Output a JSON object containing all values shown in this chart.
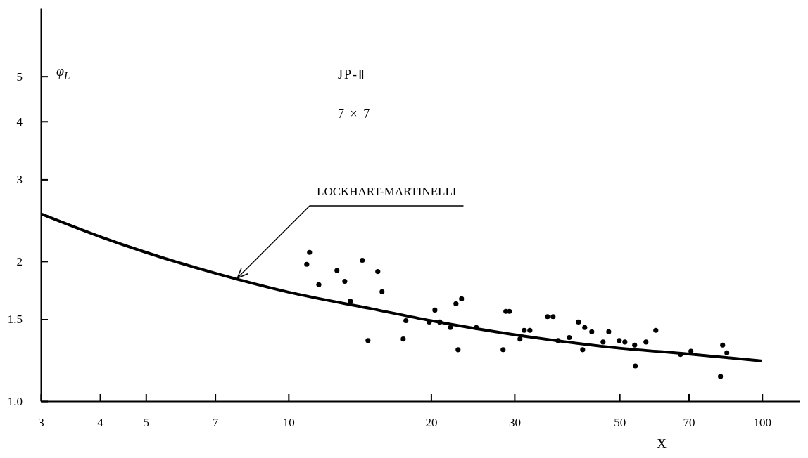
{
  "chart_data": {
    "type": "scatter",
    "ylabel": "φ$_{L}$",
    "xlabel": "X",
    "log": "xy",
    "grid": false,
    "xlim": [
      3,
      120
    ],
    "ylim": [
      1,
      7
    ],
    "xticks": [
      3,
      4,
      5,
      7,
      10,
      20,
      30,
      50,
      70,
      100
    ],
    "yticks": [
      {
        "value": 1,
        "label": "1.0"
      },
      1.5,
      2,
      3,
      4,
      5
    ],
    "annotations": [
      "JP-Ⅱ",
      "7 × 7",
      {
        "text": "LOCKHART-MARTINELLI",
        "x": 7.8,
        "y": 1.84
      }
    ],
    "series": [
      {
        "marker": "circle",
        "color": "#000000",
        "x": [
          10.93,
          11.08,
          11.59,
          12.66,
          13.15,
          13.51,
          14.32,
          15.44,
          15.76,
          14.72,
          17.47,
          17.7,
          20.38,
          19.83,
          20.87,
          21.97,
          22.58,
          23.2,
          22.81,
          24.93,
          28.78,
          29.28,
          28.39,
          31.46,
          32.34,
          30.82,
          35.24,
          36.2,
          37.08,
          39.16,
          40.96,
          42.23,
          43.7,
          41.8,
          46.16,
          47.45,
          49.94,
          51.33,
          53.83,
          54.02,
          56.87,
          59.66,
          67.26,
          70.77,
          82.56,
          84.27,
          81.7
        ],
        "values": [
          1.97,
          2.09,
          1.78,
          1.91,
          1.81,
          1.64,
          2.01,
          1.9,
          1.72,
          1.35,
          1.36,
          1.49,
          1.57,
          1.48,
          1.48,
          1.44,
          1.62,
          1.66,
          1.29,
          1.44,
          1.56,
          1.56,
          1.29,
          1.42,
          1.42,
          1.36,
          1.52,
          1.52,
          1.35,
          1.37,
          1.48,
          1.44,
          1.41,
          1.29,
          1.34,
          1.41,
          1.35,
          1.34,
          1.32,
          1.19,
          1.34,
          1.42,
          1.26,
          1.28,
          1.32,
          1.27,
          1.13
        ]
      },
      {
        "type": "line",
        "color": "#000000",
        "x": [
          3,
          4,
          5,
          7,
          10,
          15,
          20,
          30,
          50,
          70,
          100
        ],
        "values": [
          2.53,
          2.26,
          2.09,
          1.885,
          1.716,
          1.58,
          1.49,
          1.39,
          1.3,
          1.263,
          1.22
        ]
      }
    ]
  }
}
